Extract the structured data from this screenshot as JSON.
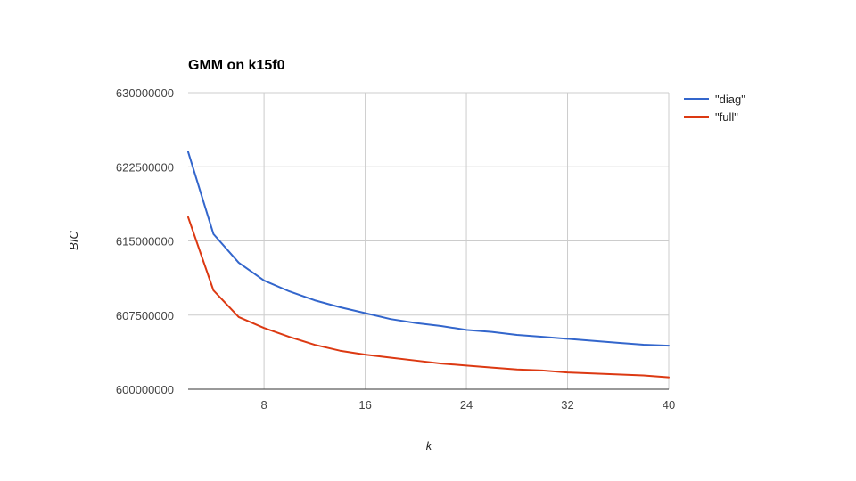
{
  "chart_data": {
    "type": "line",
    "title": "GMM on k15f0",
    "xlabel": "k",
    "ylabel": "BIC",
    "xlim": [
      2,
      40
    ],
    "ylim": [
      600000000,
      630000000
    ],
    "x_ticks": [
      8,
      16,
      24,
      32,
      40
    ],
    "y_ticks": [
      600000000,
      607500000,
      615000000,
      622500000,
      630000000
    ],
    "grid": true,
    "legend_position": "right",
    "x": [
      2,
      4,
      6,
      8,
      10,
      12,
      14,
      16,
      18,
      20,
      22,
      24,
      26,
      28,
      30,
      32,
      34,
      36,
      38,
      40
    ],
    "series": [
      {
        "name": "\"diag\"",
        "color": "#3366cc",
        "values": [
          624000000,
          615700000,
          612800000,
          611000000,
          609900000,
          609000000,
          608300000,
          607700000,
          607100000,
          606700000,
          606400000,
          606000000,
          605800000,
          605500000,
          605300000,
          605100000,
          604900000,
          604700000,
          604500000,
          604400000
        ]
      },
      {
        "name": "\"full\"",
        "color": "#dc3912",
        "values": [
          617400000,
          610000000,
          607300000,
          606200000,
          605300000,
          604500000,
          603900000,
          603500000,
          603200000,
          602900000,
          602600000,
          602400000,
          602200000,
          602000000,
          601900000,
          601700000,
          601600000,
          601500000,
          601400000,
          601200000
        ]
      }
    ]
  }
}
